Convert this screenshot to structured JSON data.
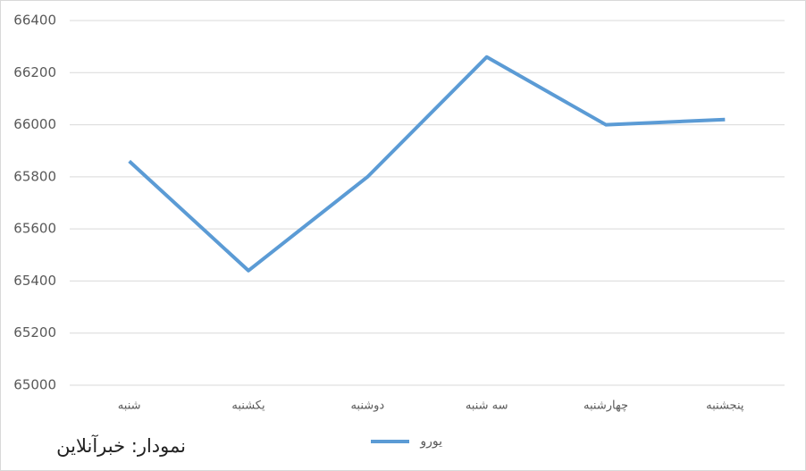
{
  "chart_data": {
    "type": "line",
    "annotation": "نمودار: خبرآنلاین",
    "categories": [
      "شنبه",
      "یکشنبه",
      "دوشنبه",
      "سه شنبه",
      "چهارشنبه",
      "پنجشنبه"
    ],
    "series": [
      {
        "name": "یورو",
        "color": "#5b9bd5",
        "values": [
          65860,
          65440,
          65800,
          66260,
          66000,
          66020
        ]
      }
    ],
    "ylim": [
      65000,
      66400
    ],
    "yticks": [
      65000,
      65200,
      65400,
      65600,
      65800,
      66000,
      66200,
      66400
    ],
    "grid": true,
    "legend": "bottom"
  }
}
